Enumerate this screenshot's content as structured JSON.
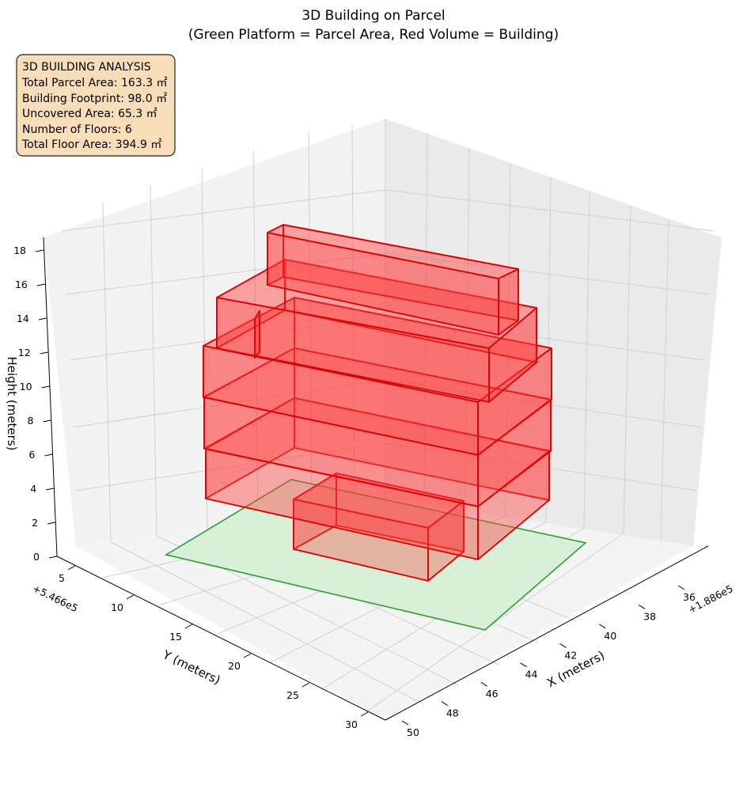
{
  "chart_data": {
    "type": "3d-polygons",
    "title_lines": [
      "3D Building on Parcel",
      "(Green Platform = Parcel Area, Red Volume = Building)"
    ],
    "xlabel": "X (meters)",
    "ylabel": "Y (meters)",
    "zlabel": "Height (meters)",
    "x_offset_label": "+1.886e5",
    "y_offset_label": "+5.466e5",
    "x_ticks": [
      "36",
      "38",
      "40",
      "42",
      "44",
      "46",
      "48",
      "50"
    ],
    "y_ticks": [
      "5",
      "10",
      "15",
      "20",
      "25",
      "30"
    ],
    "z_ticks": [
      "0",
      "2",
      "4",
      "6",
      "8",
      "10",
      "12",
      "14",
      "16",
      "18"
    ],
    "colors": {
      "parcel_fill": "#d4f0d4",
      "parcel_edge": "#2ca02c",
      "building_fill": "#ff3b3b",
      "building_edge": "#dd0000",
      "pane": "#f2f2f2",
      "grid": "#d0d0d0",
      "annotation_bg": "#f8deb8",
      "annotation_edge": "#222222"
    },
    "annotation": {
      "lines": [
        "3D BUILDING ANALYSIS",
        "Total Parcel Area: 163.3 ㎡",
        "Building Footprint: 98.0 ㎡",
        "Uncovered Area: 65.3 ㎡",
        "Number of Floors: 6",
        "Total Floor Area: 394.9 ㎡"
      ]
    },
    "stats": {
      "total_parcel_area_m2": 163.3,
      "building_footprint_m2": 98.0,
      "uncovered_area_m2": 65.3,
      "number_of_floors": 6,
      "total_floor_area_m2": 394.9
    }
  }
}
